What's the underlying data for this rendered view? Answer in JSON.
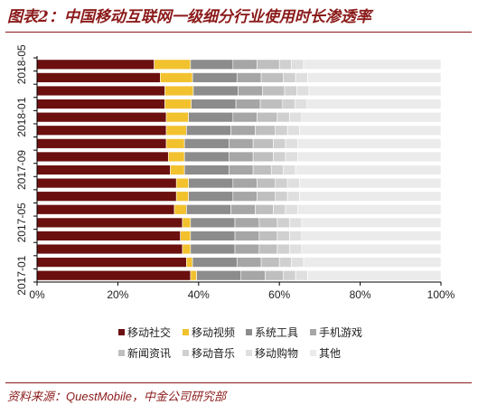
{
  "header": {
    "title": "图表2：中国移动互联网一级细分行业使用时长渗透率"
  },
  "footer": {
    "source_label": "资料来源：",
    "source_text": "QuestMobile，中金公司研究部"
  },
  "chart_data": {
    "type": "bar",
    "orientation": "horizontal",
    "stacked": true,
    "percent": true,
    "title": "图表2：中国移动互联网一级细分行业使用时长渗透率",
    "xlim": [
      0,
      100
    ],
    "x_ticks": [
      "0%",
      "20%",
      "40%",
      "60%",
      "80%",
      "100%"
    ],
    "categories": [
      "2017-01",
      "2017-02",
      "2017-03",
      "2017-04",
      "2017-05",
      "2017-06",
      "2017-07",
      "2017-08",
      "2017-09",
      "2017-10",
      "2017-11",
      "2017-12",
      "2018-01",
      "2018-02",
      "2018-03",
      "2018-04",
      "2018-05"
    ],
    "y_tick_labels": [
      "2017-01",
      "2017-05",
      "2017-09",
      "2018-01",
      "2018-05"
    ],
    "legend_position": "bottom",
    "colors": [
      "#6B0F0F",
      "#F2C12E",
      "#8C8C8C",
      "#A6A6A6",
      "#BFBFBF",
      "#D0D0D0",
      "#DFDFDF",
      "#EBEBEB",
      "#F0EDE5"
    ],
    "series": [
      {
        "name": "移动社交",
        "values": [
          38,
          37,
          36,
          35.5,
          36,
          34,
          34.5,
          34.5,
          33,
          32.5,
          32,
          32,
          32,
          31.5,
          31.5,
          30.5,
          29
        ]
      },
      {
        "name": "移动视频",
        "values": [
          1.5,
          1.5,
          2,
          2.5,
          2,
          3,
          3,
          3,
          3.5,
          4,
          4.5,
          5,
          5.5,
          6.5,
          7,
          8,
          9
        ]
      },
      {
        "name": "系统工具",
        "values": [
          11,
          11,
          11,
          11,
          11,
          11,
          11,
          11,
          11,
          11,
          11,
          11,
          11,
          11,
          11,
          11,
          10.5
        ]
      },
      {
        "name": "手机游戏",
        "values": [
          6,
          6,
          6,
          6,
          6,
          6,
          6,
          6,
          6,
          6,
          6,
          6,
          6,
          6,
          6,
          6,
          6
        ]
      },
      {
        "name": "新闻资讯",
        "values": [
          4.5,
          4.5,
          4.5,
          4.5,
          4.5,
          4.5,
          4.5,
          4.5,
          4.5,
          5,
          5,
          5,
          5,
          5.5,
          5.5,
          5.5,
          5.5
        ]
      },
      {
        "name": "移动音乐",
        "values": [
          3,
          3,
          3,
          3,
          3,
          3,
          3,
          3,
          3,
          3,
          3,
          3,
          3,
          3,
          3,
          3,
          3
        ]
      },
      {
        "name": "移动购物",
        "values": [
          3,
          3,
          3,
          3,
          3,
          3,
          3,
          3,
          3,
          3,
          3,
          3,
          3,
          3,
          3,
          3,
          3
        ]
      },
      {
        "name": "其他",
        "values": [
          33,
          34,
          34.5,
          34.5,
          34.5,
          35.5,
          35,
          35,
          36,
          35.5,
          35.5,
          35,
          34.5,
          33,
          32.5,
          33,
          34
        ]
      }
    ]
  }
}
